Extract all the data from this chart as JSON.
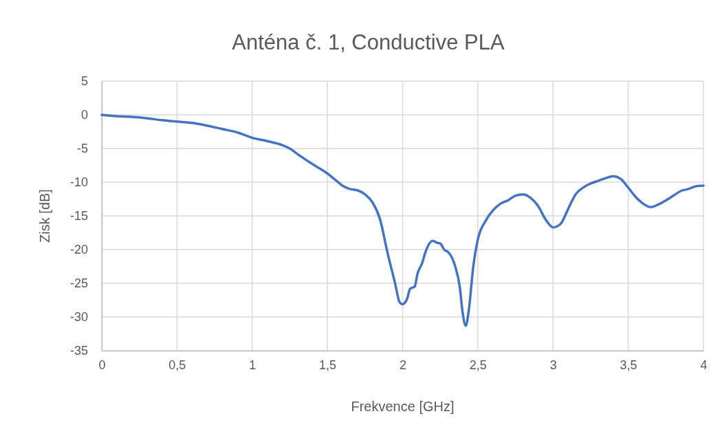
{
  "chart_data": {
    "type": "line",
    "title": "Anténa č. 1, Conductive PLA",
    "xlabel": "Frekvence [GHz]",
    "ylabel": "Zisk [dB]",
    "xlim": [
      0,
      4
    ],
    "xticks": [
      0,
      {
        "value": 0.5,
        "label": "0,5"
      },
      1,
      {
        "value": 1.5,
        "label": "1,5"
      },
      2,
      {
        "value": 2.5,
        "label": "2,5"
      },
      3,
      {
        "value": 3.5,
        "label": "3,5"
      },
      4
    ],
    "ylim": [
      -35,
      5
    ],
    "yticks": [
      -35,
      -30,
      -25,
      -20,
      -15,
      -10,
      -5,
      0,
      5
    ],
    "grid": true,
    "marker": "none",
    "line_style": "solid",
    "series": [
      {
        "color": "#4472c4",
        "x": [
          0,
          0.1,
          0.2,
          0.3,
          0.4,
          0.5,
          0.6,
          0.7,
          0.8,
          0.9,
          1.0,
          1.1,
          1.2,
          1.25,
          1.3,
          1.4,
          1.5,
          1.55,
          1.6,
          1.65,
          1.7,
          1.75,
          1.8,
          1.85,
          1.9,
          1.95,
          1.98,
          2.0,
          2.03,
          2.05,
          2.08,
          2.1,
          2.13,
          2.15,
          2.2,
          2.23,
          2.25,
          2.28,
          2.3,
          2.35,
          2.38,
          2.4,
          2.42,
          2.44,
          2.47,
          2.5,
          2.55,
          2.6,
          2.65,
          2.7,
          2.75,
          2.8,
          2.85,
          2.9,
          2.95,
          3.0,
          3.05,
          3.1,
          3.15,
          3.2,
          3.25,
          3.3,
          3.35,
          3.4,
          3.45,
          3.5,
          3.55,
          3.6,
          3.65,
          3.7,
          3.75,
          3.8,
          3.85,
          3.9,
          3.95,
          4.0
        ],
        "values": [
          0,
          -0.2,
          -0.3,
          -0.5,
          -0.8,
          -1.0,
          -1.2,
          -1.6,
          -2.1,
          -2.6,
          -3.4,
          -3.9,
          -4.5,
          -5.0,
          -5.8,
          -7.3,
          -8.7,
          -9.6,
          -10.5,
          -11.0,
          -11.2,
          -11.8,
          -13.0,
          -15.5,
          -20.5,
          -25,
          -27.8,
          -28.1,
          -27.3,
          -25.8,
          -25.5,
          -23.5,
          -22,
          -20.5,
          -18.7,
          -19.0,
          -19.1,
          -20.1,
          -20.3,
          -22.5,
          -25.5,
          -29.5,
          -31.3,
          -29,
          -22.5,
          -18.5,
          -15.8,
          -14.2,
          -13.2,
          -12.7,
          -12.0,
          -11.8,
          -12.3,
          -13.5,
          -15.5,
          -16.7,
          -16.2,
          -14,
          -11.8,
          -10.8,
          -10.2,
          -9.8,
          -9.4,
          -9.1,
          -9.5,
          -10.8,
          -12.2,
          -13.2,
          -13.7,
          -13.3,
          -12.7,
          -12.0,
          -11.3,
          -11.0,
          -10.6,
          -10.5
        ]
      }
    ]
  }
}
